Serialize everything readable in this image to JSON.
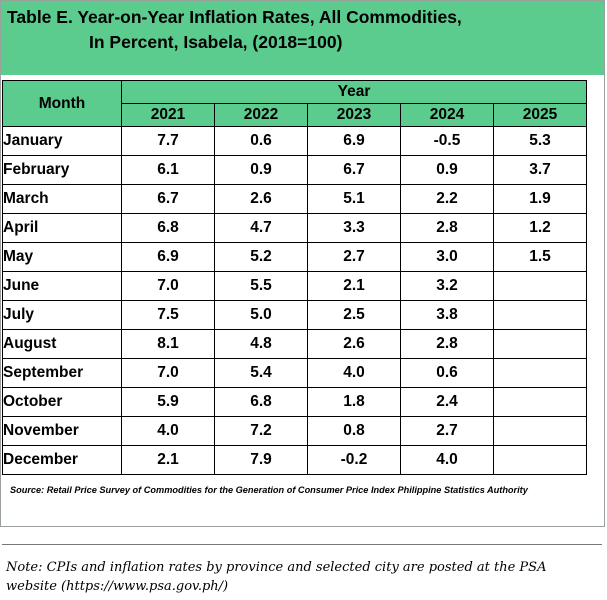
{
  "title": {
    "line1": "Table E.  Year-on-Year Inflation Rates,  All Commodities,",
    "line2": "In Percent, Isabela,  (2018=100)"
  },
  "table": {
    "month_header": "Month",
    "year_header": "Year",
    "years": [
      "2021",
      "2022",
      "2023",
      "2024",
      "2025"
    ],
    "rows": [
      {
        "month": "January",
        "values": [
          "7.7",
          "0.6",
          "6.9",
          "-0.5",
          "5.3"
        ]
      },
      {
        "month": "February",
        "values": [
          "6.1",
          "0.9",
          "6.7",
          "0.9",
          "3.7"
        ]
      },
      {
        "month": "March",
        "values": [
          "6.7",
          "2.6",
          "5.1",
          "2.2",
          "1.9"
        ]
      },
      {
        "month": "April",
        "values": [
          "6.8",
          "4.7",
          "3.3",
          "2.8",
          "1.2"
        ]
      },
      {
        "month": "May",
        "values": [
          "6.9",
          "5.2",
          "2.7",
          "3.0",
          "1.5"
        ]
      },
      {
        "month": "June",
        "values": [
          "7.0",
          "5.5",
          "2.1",
          "3.2",
          ""
        ]
      },
      {
        "month": "July",
        "values": [
          "7.5",
          "5.0",
          "2.5",
          "3.8",
          ""
        ]
      },
      {
        "month": "August",
        "values": [
          "8.1",
          "4.8",
          "2.6",
          "2.8",
          ""
        ]
      },
      {
        "month": "September",
        "values": [
          "7.0",
          "5.4",
          "4.0",
          "0.6",
          ""
        ]
      },
      {
        "month": "October",
        "values": [
          "5.9",
          "6.8",
          "1.8",
          "2.4",
          ""
        ]
      },
      {
        "month": "November",
        "values": [
          "4.0",
          "7.2",
          "0.8",
          "2.7",
          ""
        ]
      },
      {
        "month": "December",
        "values": [
          "2.1",
          "7.9",
          "-0.2",
          "4.0",
          ""
        ]
      }
    ]
  },
  "source": "Source: Retail Price Survey of Commodities for the Generation of  Consumer Price Index Philippine Statistics Authority",
  "note": "Note:  CPIs and inflation rates by province and selected city are posted at the PSA website (https://www.psa.gov.ph/)",
  "colors": {
    "header_green": "#5ccc8e"
  }
}
